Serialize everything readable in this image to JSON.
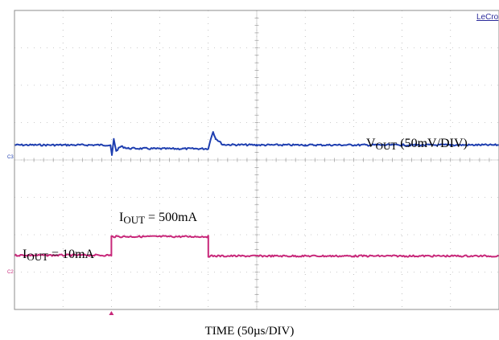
{
  "chart_data": {
    "type": "line",
    "brand": "LeCro",
    "xlabel": "TIME (50µs/DIV)",
    "x_divisions": 10,
    "y_divisions": 8,
    "grid": true,
    "channel_tags": {
      "vout": "C3",
      "iout": "C2"
    },
    "annotations": {
      "vout": {
        "main": "V",
        "sub": "OUT",
        "rest": " (50mV/DIV)"
      },
      "iout_high": {
        "main": "I",
        "sub": "OUT",
        "rest": " = 500mA"
      },
      "iout_low": {
        "main": "I",
        "sub": "OUT",
        "rest": " = 10mA"
      }
    },
    "trigger_marker_div": 2,
    "series": [
      {
        "name": "VOUT (50mV/DIV)",
        "color": "#1f3fb0",
        "x_div": [
          0,
          1.98,
          2.01,
          2.05,
          2.1,
          2.2,
          2.35,
          3.0,
          4.0,
          4.02,
          4.1,
          4.15,
          4.3,
          5.0,
          6.0,
          7.0,
          8.0,
          9.0,
          10.0
        ],
        "y_div": [
          4.4,
          4.4,
          4.12,
          4.55,
          4.25,
          4.36,
          4.31,
          4.3,
          4.3,
          4.42,
          4.76,
          4.58,
          4.41,
          4.4,
          4.4,
          4.4,
          4.4,
          4.4,
          4.4
        ]
      },
      {
        "name": "IOUT",
        "color": "#c8287a",
        "x_div": [
          0,
          2.0,
          2.0,
          4.0,
          4.0,
          10.0
        ],
        "y_div": [
          1.45,
          1.45,
          1.95,
          1.95,
          1.43,
          1.43
        ],
        "levels": [
          "10mA",
          "500mA"
        ]
      }
    ]
  }
}
